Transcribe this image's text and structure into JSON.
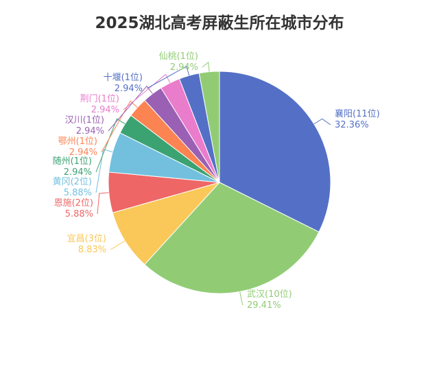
{
  "chart_data": {
    "type": "pie",
    "title": "2025湖北高考屏蔽生所在城市分布",
    "legend": "none",
    "slices": [
      {
        "name": "襄阳(11位)",
        "percent_label": "32.36%",
        "value": 32.36,
        "color": "#5470c6"
      },
      {
        "name": "武汉(10位)",
        "percent_label": "29.41%",
        "value": 29.41,
        "color": "#91cc75"
      },
      {
        "name": "宜昌(3位)",
        "percent_label": "8.83%",
        "value": 8.83,
        "color": "#fac858"
      },
      {
        "name": "恩施(2位)",
        "percent_label": "5.88%",
        "value": 5.88,
        "color": "#ee6666"
      },
      {
        "name": "黄冈(2位)",
        "percent_label": "5.88%",
        "value": 5.88,
        "color": "#73c0de"
      },
      {
        "name": "随州(1位)",
        "percent_label": "2.94%",
        "value": 2.94,
        "color": "#3ba272"
      },
      {
        "name": "鄂州(1位)",
        "percent_label": "2.94%",
        "value": 2.94,
        "color": "#fc8452"
      },
      {
        "name": "汉川(1位)",
        "percent_label": "2.94%",
        "value": 2.94,
        "color": "#9a60b4"
      },
      {
        "name": "荆门(1位)",
        "percent_label": "2.94%",
        "value": 2.94,
        "color": "#ea7ccc"
      },
      {
        "name": "十堰(1位)",
        "percent_label": "2.94%",
        "value": 2.94,
        "color": "#5470c6"
      },
      {
        "name": "仙桃(1位)",
        "percent_label": "2.94%",
        "value": 2.94,
        "color": "#91cc75"
      }
    ]
  }
}
